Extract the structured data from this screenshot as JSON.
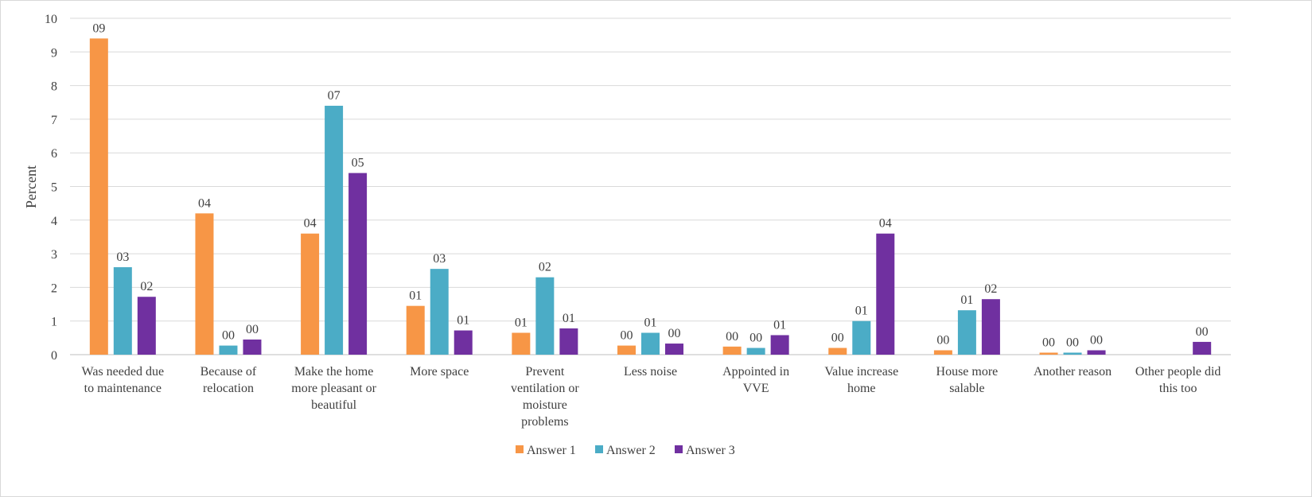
{
  "chart_data": {
    "type": "bar",
    "title": "",
    "xlabel": "",
    "ylabel": "Percent",
    "ylim": [
      0,
      10
    ],
    "yticks": [
      0,
      1,
      2,
      3,
      4,
      5,
      6,
      7,
      8,
      9,
      10
    ],
    "grid": true,
    "legend_position": "bottom",
    "categories": [
      [
        "Was needed due",
        "to maintenance"
      ],
      [
        "Because of",
        "relocation"
      ],
      [
        "Make the home",
        "more pleasant or",
        "beautiful"
      ],
      [
        "More space"
      ],
      [
        "Prevent",
        "ventilation or",
        "moisture",
        "problems"
      ],
      [
        "Less noise"
      ],
      [
        "Appointed in",
        "VVE"
      ],
      [
        "Value increase",
        "home"
      ],
      [
        "House more",
        "salable"
      ],
      [
        "Another reason"
      ],
      [
        "Other people did",
        "this too"
      ]
    ],
    "series": [
      {
        "name": "Answer 1",
        "color": "#f79646",
        "values": [
          9.4,
          4.2,
          3.6,
          1.45,
          0.65,
          0.27,
          0.24,
          0.2,
          0.13,
          0.06,
          0.0
        ],
        "labels": [
          "09",
          "04",
          "04",
          "01",
          "01",
          "00",
          "00",
          "00",
          "00",
          "00",
          null
        ]
      },
      {
        "name": "Answer 2",
        "color": "#4bacc6",
        "values": [
          2.6,
          0.27,
          7.4,
          2.55,
          2.3,
          0.65,
          0.2,
          1.0,
          1.32,
          0.06,
          0.0
        ],
        "labels": [
          "03",
          "00",
          "07",
          "03",
          "02",
          "01",
          "00",
          "01",
          "01",
          "00",
          null
        ]
      },
      {
        "name": "Answer 3",
        "color": "#7030a0",
        "values": [
          1.72,
          0.45,
          5.4,
          0.72,
          0.78,
          0.33,
          0.58,
          3.6,
          1.65,
          0.13,
          0.38
        ],
        "labels": [
          "02",
          "00",
          "05",
          "01",
          "01",
          "00",
          "01",
          "04",
          "02",
          "00",
          "00"
        ]
      }
    ]
  }
}
